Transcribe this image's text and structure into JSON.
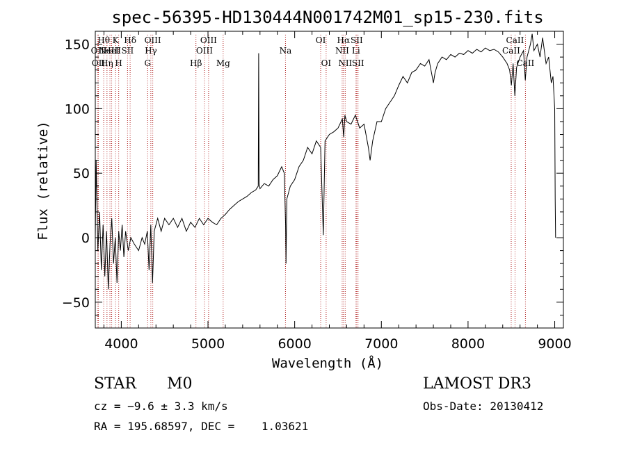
{
  "chart_data": {
    "type": "line",
    "title": "spec-56395-HD130444N001742M01_sp15-230.fits",
    "xlabel": "Wavelength (Å)",
    "ylabel": "Flux (relative)",
    "xlim": [
      3700,
      9100
    ],
    "ylim": [
      -70,
      160
    ],
    "x_ticks": [
      4000,
      5000,
      6000,
      7000,
      8000,
      9000
    ],
    "y_ticks": [
      -50,
      0,
      50,
      100,
      150
    ],
    "series": [
      {
        "name": "spectrum",
        "points": [
          [
            3700,
            0
          ],
          [
            3710,
            60
          ],
          [
            3730,
            -10
          ],
          [
            3750,
            20
          ],
          [
            3770,
            -25
          ],
          [
            3790,
            10
          ],
          [
            3810,
            -30
          ],
          [
            3830,
            5
          ],
          [
            3850,
            -40
          ],
          [
            3870,
            -5
          ],
          [
            3890,
            15
          ],
          [
            3910,
            -20
          ],
          [
            3930,
            0
          ],
          [
            3950,
            -35
          ],
          [
            3970,
            5
          ],
          [
            3990,
            -10
          ],
          [
            4010,
            10
          ],
          [
            4030,
            -15
          ],
          [
            4050,
            5
          ],
          [
            4080,
            -10
          ],
          [
            4110,
            0
          ],
          [
            4150,
            -5
          ],
          [
            4200,
            -10
          ],
          [
            4240,
            0
          ],
          [
            4270,
            -5
          ],
          [
            4300,
            5
          ],
          [
            4320,
            -25
          ],
          [
            4340,
            10
          ],
          [
            4360,
            -35
          ],
          [
            4380,
            5
          ],
          [
            4420,
            15
          ],
          [
            4460,
            5
          ],
          [
            4500,
            15
          ],
          [
            4550,
            10
          ],
          [
            4600,
            15
          ],
          [
            4650,
            8
          ],
          [
            4700,
            15
          ],
          [
            4750,
            5
          ],
          [
            4800,
            12
          ],
          [
            4850,
            8
          ],
          [
            4900,
            15
          ],
          [
            4950,
            10
          ],
          [
            5000,
            15
          ],
          [
            5050,
            12
          ],
          [
            5100,
            10
          ],
          [
            5150,
            15
          ],
          [
            5200,
            18
          ],
          [
            5250,
            22
          ],
          [
            5300,
            25
          ],
          [
            5350,
            28
          ],
          [
            5400,
            30
          ],
          [
            5450,
            32
          ],
          [
            5500,
            35
          ],
          [
            5550,
            37
          ],
          [
            5580,
            40
          ],
          [
            5585,
            143
          ],
          [
            5590,
            42
          ],
          [
            5600,
            38
          ],
          [
            5650,
            42
          ],
          [
            5700,
            40
          ],
          [
            5750,
            45
          ],
          [
            5800,
            48
          ],
          [
            5850,
            55
          ],
          [
            5880,
            50
          ],
          [
            5895,
            10
          ],
          [
            5900,
            -20
          ],
          [
            5910,
            30
          ],
          [
            5950,
            40
          ],
          [
            6000,
            45
          ],
          [
            6050,
            55
          ],
          [
            6100,
            60
          ],
          [
            6150,
            70
          ],
          [
            6200,
            65
          ],
          [
            6250,
            75
          ],
          [
            6300,
            70
          ],
          [
            6330,
            2
          ],
          [
            6350,
            75
          ],
          [
            6400,
            80
          ],
          [
            6450,
            82
          ],
          [
            6500,
            85
          ],
          [
            6550,
            92
          ],
          [
            6565,
            78
          ],
          [
            6580,
            95
          ],
          [
            6600,
            90
          ],
          [
            6650,
            88
          ],
          [
            6700,
            95
          ],
          [
            6750,
            85
          ],
          [
            6800,
            88
          ],
          [
            6850,
            70
          ],
          [
            6870,
            60
          ],
          [
            6900,
            75
          ],
          [
            6950,
            90
          ],
          [
            7000,
            90
          ],
          [
            7050,
            100
          ],
          [
            7100,
            105
          ],
          [
            7150,
            110
          ],
          [
            7200,
            118
          ],
          [
            7250,
            125
          ],
          [
            7300,
            120
          ],
          [
            7350,
            128
          ],
          [
            7400,
            130
          ],
          [
            7450,
            135
          ],
          [
            7500,
            133
          ],
          [
            7550,
            138
          ],
          [
            7600,
            120
          ],
          [
            7620,
            128
          ],
          [
            7650,
            135
          ],
          [
            7700,
            140
          ],
          [
            7750,
            138
          ],
          [
            7800,
            142
          ],
          [
            7850,
            140
          ],
          [
            7900,
            143
          ],
          [
            7950,
            142
          ],
          [
            8000,
            145
          ],
          [
            8050,
            143
          ],
          [
            8100,
            146
          ],
          [
            8150,
            144
          ],
          [
            8200,
            147
          ],
          [
            8250,
            145
          ],
          [
            8300,
            146
          ],
          [
            8350,
            144
          ],
          [
            8400,
            140
          ],
          [
            8450,
            135
          ],
          [
            8480,
            130
          ],
          [
            8500,
            118
          ],
          [
            8520,
            135
          ],
          [
            8540,
            110
          ],
          [
            8560,
            132
          ],
          [
            8600,
            140
          ],
          [
            8640,
            145
          ],
          [
            8660,
            122
          ],
          [
            8680,
            140
          ],
          [
            8720,
            150
          ],
          [
            8740,
            158
          ],
          [
            8760,
            145
          ],
          [
            8800,
            150
          ],
          [
            8830,
            140
          ],
          [
            8860,
            155
          ],
          [
            8900,
            135
          ],
          [
            8930,
            140
          ],
          [
            8960,
            120
          ],
          [
            8980,
            125
          ],
          [
            9000,
            100
          ],
          [
            9005,
            30
          ],
          [
            9010,
            0
          ]
        ]
      }
    ],
    "line_markers": [
      {
        "wavelength": 3726,
        "label": "OII",
        "row": 2
      },
      {
        "wavelength": 3736,
        "label": "OII",
        "row": 3
      },
      {
        "wavelength": 3797,
        "label": "Hθ",
        "row": 1
      },
      {
        "wavelength": 3835,
        "label": "Hη",
        "row": 3
      },
      {
        "wavelength": 3869,
        "label": "NeIII",
        "row": 2
      },
      {
        "wavelength": 3889,
        "label": "HeI",
        "row": 2
      },
      {
        "wavelength": 3934,
        "label": "K",
        "row": 1
      },
      {
        "wavelength": 3970,
        "label": "H",
        "row": 3
      },
      {
        "wavelength": 4072,
        "label": "SII",
        "row": 2
      },
      {
        "wavelength": 4102,
        "label": "Hδ",
        "row": 1
      },
      {
        "wavelength": 4304,
        "label": "G",
        "row": 3
      },
      {
        "wavelength": 4341,
        "label": "Hγ",
        "row": 2
      },
      {
        "wavelength": 4363,
        "label": "OIII",
        "row": 1
      },
      {
        "wavelength": 4861,
        "label": "Hβ",
        "row": 3
      },
      {
        "wavelength": 4959,
        "label": "OIII",
        "row": 2
      },
      {
        "wavelength": 5007,
        "label": "OIII",
        "row": 1
      },
      {
        "wavelength": 5175,
        "label": "Mg",
        "row": 3
      },
      {
        "wavelength": 5894,
        "label": "Na",
        "row": 2
      },
      {
        "wavelength": 6300,
        "label": "OI",
        "row": 1
      },
      {
        "wavelength": 6363,
        "label": "OI",
        "row": 3
      },
      {
        "wavelength": 6548,
        "label": "NII",
        "row": 2
      },
      {
        "wavelength": 6563,
        "label": "Hα",
        "row": 1
      },
      {
        "wavelength": 6583,
        "label": "NII",
        "row": 3
      },
      {
        "wavelength": 6707,
        "label": "Li",
        "row": 2
      },
      {
        "wavelength": 6716,
        "label": "SII",
        "row": 1
      },
      {
        "wavelength": 6731,
        "label": "SII",
        "row": 3
      },
      {
        "wavelength": 8498,
        "label": "CaII",
        "row": 2
      },
      {
        "wavelength": 8542,
        "label": "CaII",
        "row": 1
      },
      {
        "wavelength": 8662,
        "label": "CaII",
        "row": 3
      }
    ]
  },
  "info": {
    "object_class": "STAR",
    "subclass": "M0",
    "survey": "LAMOST DR3",
    "redshift_line": "cz = −9.6 ± 3.3 km/s",
    "obs_date": "Obs-Date: 20130412",
    "coords": "RA = 195.68597, DEC =    1.03621"
  },
  "colors": {
    "spectrum": "#000000",
    "marker_line": "#b22222",
    "axis": "#000000"
  }
}
